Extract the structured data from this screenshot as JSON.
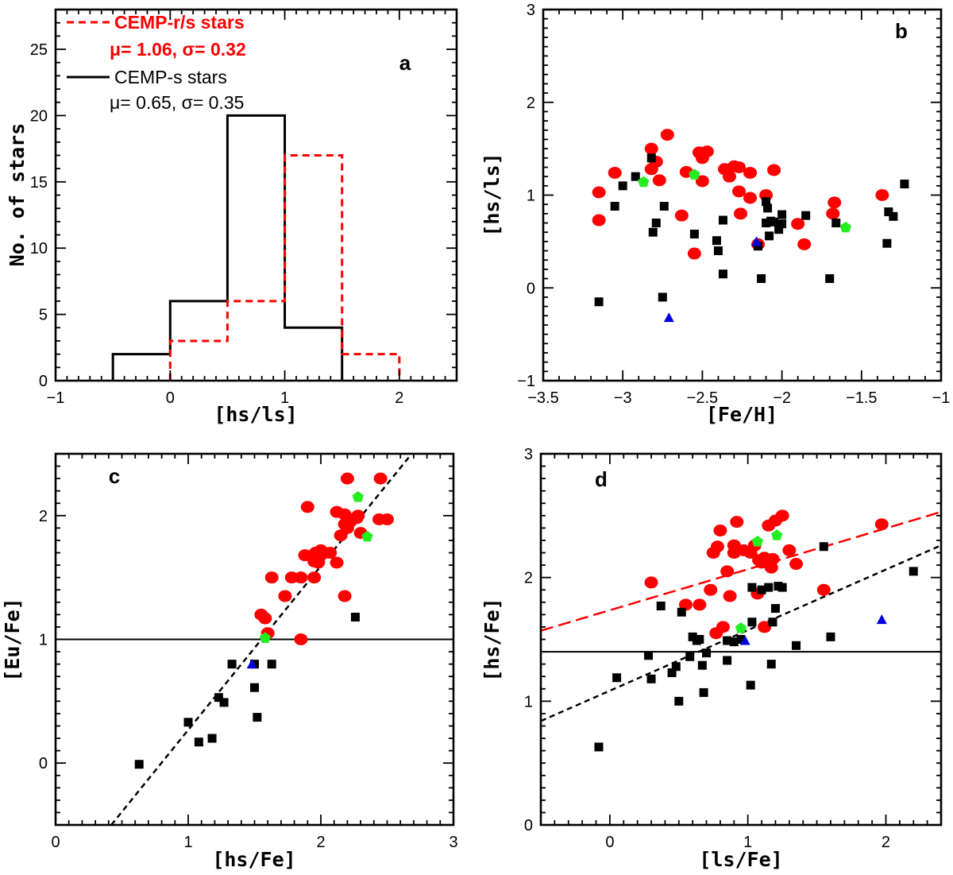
{
  "colors": {
    "cemp_rs": "#ff0000",
    "cemp_s": "#000000",
    "green": "#22ee22",
    "blue": "#0000dd"
  },
  "chart_data": [
    {
      "panel": "a",
      "type": "histogram",
      "xlabel": "[hs/ls]",
      "ylabel": "No. of stars",
      "xlim": [
        -1,
        2.5
      ],
      "ylim": [
        0,
        28
      ],
      "xticks": [
        -1,
        0,
        1,
        2
      ],
      "yticks": [
        0,
        5,
        10,
        15,
        20,
        25
      ],
      "legend": {
        "rs_label": "CEMP-r/s stars",
        "rs_stats": "μ= 1.06, σ= 0.32",
        "s_label": "CEMP-s stars",
        "s_stats": "μ= 0.65, σ= 0.35"
      },
      "series": [
        {
          "name": "CEMP-r/s stars",
          "bin_edges": [
            0,
            0.5,
            1.0,
            1.5,
            2.0
          ],
          "counts": [
            3,
            6,
            17,
            2
          ]
        },
        {
          "name": "CEMP-s stars",
          "bin_edges": [
            -0.5,
            0,
            0.5,
            1.0,
            1.5
          ],
          "counts": [
            2,
            6,
            20,
            4
          ]
        }
      ]
    },
    {
      "panel": "b",
      "type": "scatter",
      "xlabel": "[Fe/H]",
      "ylabel": "[hs/ls]",
      "xlim": [
        -3.5,
        -1
      ],
      "ylim": [
        -1,
        3
      ],
      "xticks": [
        -3.5,
        -3,
        -2.5,
        -2,
        -1.5,
        -1
      ],
      "yticks": [
        -1,
        0,
        1,
        2,
        3
      ],
      "series": [
        {
          "name": "CEMP-r/s",
          "marker": "circle",
          "points": [
            [
              -3.15,
              1.03
            ],
            [
              -3.15,
              0.73
            ],
            [
              -3.05,
              1.24
            ],
            [
              -2.82,
              1.5
            ],
            [
              -2.82,
              1.28
            ],
            [
              -2.79,
              1.36
            ],
            [
              -2.77,
              1.16
            ],
            [
              -2.72,
              1.65
            ],
            [
              -2.63,
              0.78
            ],
            [
              -2.6,
              1.25
            ],
            [
              -2.55,
              0.37
            ],
            [
              -2.52,
              1.46
            ],
            [
              -2.5,
              1.4
            ],
            [
              -2.47,
              1.47
            ],
            [
              -2.5,
              1.15
            ],
            [
              -2.36,
              1.28
            ],
            [
              -2.33,
              1.2
            ],
            [
              -2.3,
              1.31
            ],
            [
              -2.27,
              1.3
            ],
            [
              -2.27,
              1.04
            ],
            [
              -2.26,
              0.8
            ],
            [
              -2.2,
              1.24
            ],
            [
              -2.2,
              0.97
            ],
            [
              -2.15,
              0.47
            ],
            [
              -2.1,
              1.0
            ],
            [
              -2.05,
              1.27
            ],
            [
              -1.9,
              0.69
            ],
            [
              -1.86,
              0.47
            ],
            [
              -1.67,
              0.92
            ],
            [
              -1.68,
              0.8
            ],
            [
              -1.37,
              1.0
            ]
          ]
        },
        {
          "name": "CEMP-s",
          "marker": "square",
          "points": [
            [
              -3.15,
              -0.15
            ],
            [
              -3.05,
              0.88
            ],
            [
              -3.0,
              1.1
            ],
            [
              -2.92,
              1.2
            ],
            [
              -2.82,
              1.4
            ],
            [
              -2.81,
              0.6
            ],
            [
              -2.79,
              0.7
            ],
            [
              -2.75,
              -0.1
            ],
            [
              -2.74,
              0.88
            ],
            [
              -2.55,
              0.58
            ],
            [
              -2.41,
              0.51
            ],
            [
              -2.4,
              0.4
            ],
            [
              -2.37,
              0.73
            ],
            [
              -2.37,
              0.15
            ],
            [
              -2.15,
              0.45
            ],
            [
              -2.13,
              0.1
            ],
            [
              -2.1,
              0.7
            ],
            [
              -2.1,
              0.93
            ],
            [
              -2.09,
              0.86
            ],
            [
              -2.08,
              0.56
            ],
            [
              -2.07,
              0.72
            ],
            [
              -2.05,
              0.71
            ],
            [
              -2.02,
              0.63
            ],
            [
              -2.0,
              0.79
            ],
            [
              -2.0,
              0.69
            ],
            [
              -1.85,
              0.78
            ],
            [
              -1.7,
              0.1
            ],
            [
              -1.66,
              0.7
            ],
            [
              -1.33,
              0.82
            ],
            [
              -1.34,
              0.48
            ],
            [
              -1.3,
              0.77
            ],
            [
              -1.23,
              1.12
            ]
          ]
        },
        {
          "name": "green",
          "marker": "pentagon",
          "points": [
            [
              -2.87,
              1.14
            ],
            [
              -2.55,
              1.22
            ],
            [
              -1.6,
              0.65
            ]
          ]
        },
        {
          "name": "blue",
          "marker": "triangle",
          "points": [
            [
              -2.71,
              -0.32
            ],
            [
              -2.16,
              0.5
            ]
          ]
        }
      ]
    },
    {
      "panel": "c",
      "type": "scatter",
      "xlabel": "[hs/Fe]",
      "ylabel": "[Eu/Fe]",
      "xlim": [
        0,
        3
      ],
      "ylim": [
        -0.5,
        2.5
      ],
      "xticks": [
        0,
        1,
        2,
        3
      ],
      "yticks": [
        0,
        1,
        2
      ],
      "hline": 1.0,
      "fit_line": {
        "x": [
          0.42,
          2.67
        ],
        "y": [
          -0.5,
          2.48
        ]
      },
      "series": [
        {
          "name": "CEMP-r/s",
          "marker": "circle",
          "points": [
            [
              2.2,
              2.3
            ],
            [
              2.45,
              2.3
            ],
            [
              1.9,
              2.07
            ],
            [
              2.12,
              2.03
            ],
            [
              2.18,
              2.01
            ],
            [
              2.28,
              2.0
            ],
            [
              2.27,
              1.98
            ],
            [
              2.22,
              1.95
            ],
            [
              2.18,
              1.93
            ],
            [
              2.2,
              1.9
            ],
            [
              2.3,
              1.86
            ],
            [
              2.44,
              1.97
            ],
            [
              2.5,
              1.97
            ],
            [
              2.15,
              1.84
            ],
            [
              2.0,
              1.72
            ],
            [
              1.96,
              1.7
            ],
            [
              2.0,
              1.68
            ],
            [
              2.07,
              1.7
            ],
            [
              1.88,
              1.68
            ],
            [
              1.95,
              1.63
            ],
            [
              1.98,
              1.62
            ],
            [
              2.12,
              1.62
            ],
            [
              1.85,
              1.5
            ],
            [
              1.78,
              1.5
            ],
            [
              1.95,
              1.5
            ],
            [
              1.63,
              1.5
            ],
            [
              1.73,
              1.35
            ],
            [
              2.18,
              1.35
            ],
            [
              1.55,
              1.2
            ],
            [
              1.58,
              1.17
            ],
            [
              1.6,
              1.05
            ],
            [
              1.85,
              1.0
            ]
          ]
        },
        {
          "name": "CEMP-s",
          "marker": "square",
          "points": [
            [
              0.63,
              -0.01
            ],
            [
              1.0,
              0.33
            ],
            [
              1.08,
              0.17
            ],
            [
              1.18,
              0.2
            ],
            [
              1.23,
              0.53
            ],
            [
              1.27,
              0.49
            ],
            [
              1.33,
              0.8
            ],
            [
              1.5,
              0.8
            ],
            [
              1.63,
              0.8
            ],
            [
              1.5,
              0.61
            ],
            [
              1.52,
              0.37
            ],
            [
              2.26,
              1.18
            ]
          ]
        },
        {
          "name": "green",
          "marker": "pentagon",
          "points": [
            [
              2.28,
              2.15
            ],
            [
              2.35,
              1.83
            ],
            [
              1.58,
              1.01
            ]
          ]
        },
        {
          "name": "blue",
          "marker": "triangle",
          "points": [
            [
              1.48,
              0.8
            ]
          ]
        }
      ]
    },
    {
      "panel": "d",
      "type": "scatter",
      "xlabel": "[ls/Fe]",
      "ylabel": "[hs/Fe]",
      "xlim": [
        -0.5,
        2.4
      ],
      "ylim": [
        0,
        3
      ],
      "xticks": [
        0,
        1,
        2
      ],
      "yticks": [
        0,
        1,
        2,
        3
      ],
      "hline": 1.4,
      "fit_lines": [
        {
          "name": "CEMP-r/s fit",
          "x": [
            -0.5,
            2.4
          ],
          "y": [
            1.57,
            2.53
          ]
        },
        {
          "name": "CEMP-s fit",
          "x": [
            -0.5,
            2.4
          ],
          "y": [
            0.84,
            2.26
          ]
        }
      ],
      "series": [
        {
          "name": "CEMP-r/s",
          "marker": "circle",
          "points": [
            [
              0.3,
              1.96
            ],
            [
              0.55,
              1.78
            ],
            [
              0.75,
              2.2
            ],
            [
              0.78,
              2.25
            ],
            [
              0.8,
              2.38
            ],
            [
              0.82,
              1.6
            ],
            [
              0.85,
              2.05
            ],
            [
              0.87,
              1.85
            ],
            [
              0.9,
              2.2
            ],
            [
              0.92,
              2.45
            ],
            [
              0.97,
              2.22
            ],
            [
              1.02,
              2.2
            ],
            [
              1.05,
              2.26
            ],
            [
              1.07,
              1.87
            ],
            [
              1.08,
              2.14
            ],
            [
              1.1,
              2.12
            ],
            [
              1.12,
              2.16
            ],
            [
              1.15,
              2.42
            ],
            [
              1.17,
              2.08
            ],
            [
              1.18,
              2.15
            ],
            [
              1.2,
              2.46
            ],
            [
              1.25,
              2.5
            ],
            [
              1.3,
              2.22
            ],
            [
              1.35,
              2.11
            ],
            [
              1.55,
              1.9
            ],
            [
              1.97,
              2.43
            ],
            [
              1.12,
              1.6
            ],
            [
              0.9,
              2.26
            ],
            [
              0.73,
              1.9
            ],
            [
              0.77,
              1.55
            ],
            [
              0.65,
              1.78
            ]
          ]
        },
        {
          "name": "CEMP-s",
          "marker": "square",
          "points": [
            [
              -0.08,
              0.63
            ],
            [
              0.05,
              1.19
            ],
            [
              0.28,
              1.37
            ],
            [
              0.3,
              1.18
            ],
            [
              0.37,
              1.77
            ],
            [
              0.45,
              1.23
            ],
            [
              0.48,
              1.28
            ],
            [
              0.5,
              1.0
            ],
            [
              0.52,
              1.72
            ],
            [
              0.58,
              1.36
            ],
            [
              0.6,
              1.52
            ],
            [
              0.63,
              1.49
            ],
            [
              0.65,
              1.5
            ],
            [
              0.67,
              1.29
            ],
            [
              0.68,
              1.07
            ],
            [
              0.7,
              1.39
            ],
            [
              0.85,
              1.33
            ],
            [
              0.85,
              1.49
            ],
            [
              0.9,
              1.48
            ],
            [
              0.95,
              1.5
            ],
            [
              1.02,
              1.13
            ],
            [
              1.03,
              1.64
            ],
            [
              1.03,
              1.92
            ],
            [
              1.1,
              1.9
            ],
            [
              1.15,
              1.92
            ],
            [
              1.17,
              1.3
            ],
            [
              1.18,
              1.64
            ],
            [
              1.2,
              1.75
            ],
            [
              1.22,
              1.93
            ],
            [
              1.25,
              1.92
            ],
            [
              1.35,
              1.45
            ],
            [
              1.55,
              2.25
            ],
            [
              1.6,
              1.52
            ],
            [
              2.2,
              2.05
            ]
          ]
        },
        {
          "name": "green",
          "marker": "pentagon",
          "points": [
            [
              1.07,
              2.29
            ],
            [
              1.21,
              2.34
            ],
            [
              0.95,
              1.59
            ]
          ]
        },
        {
          "name": "blue",
          "marker": "triangle",
          "points": [
            [
              0.98,
              1.49
            ],
            [
              1.97,
              1.66
            ]
          ]
        }
      ]
    }
  ]
}
